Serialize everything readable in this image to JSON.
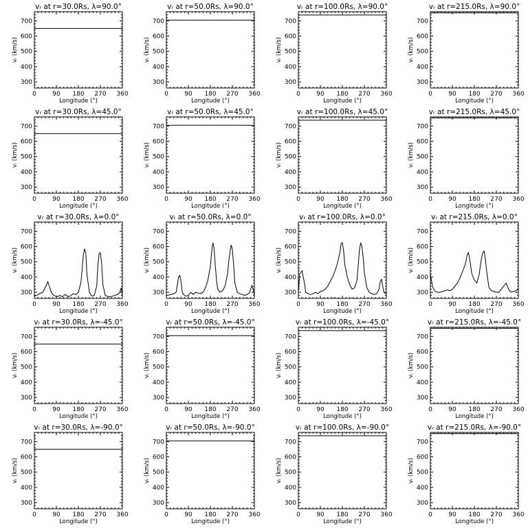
{
  "shared": {
    "xlabel": "Longitude (°)",
    "ylabel": "vᵣ (km/s)",
    "xlim": [
      0,
      360
    ],
    "ylim": [
      260,
      760
    ],
    "xticks": [
      0,
      90,
      180,
      270,
      360
    ],
    "yticks": [
      300,
      400,
      500,
      600,
      700
    ],
    "xminor": 6,
    "yminor": 5
  },
  "chart_data": [
    {
      "type": "line",
      "title": "vᵣ at r=30.0Rs, λ=90.0°",
      "r": "30.0",
      "lat": "90.0",
      "x": [
        0,
        360
      ],
      "y": [
        650,
        650
      ]
    },
    {
      "type": "line",
      "title": "vᵣ at r=50.0Rs, λ=90.0°",
      "r": "50.0",
      "lat": "90.0",
      "x": [
        0,
        360
      ],
      "y": [
        705,
        705
      ]
    },
    {
      "type": "line",
      "title": "vᵣ at r=100.0Rs, λ=90.0°",
      "r": "100.0",
      "lat": "90.0",
      "x": [
        0,
        360
      ],
      "y": [
        738,
        738
      ]
    },
    {
      "type": "line",
      "title": "vᵣ at r=215.0Rs, λ=90.0°",
      "r": "215.0",
      "lat": "90.0",
      "x": [
        0,
        360
      ],
      "y": [
        752,
        752
      ]
    },
    {
      "type": "line",
      "title": "vᵣ at r=30.0Rs, λ=45.0°",
      "r": "30.0",
      "lat": "45.0",
      "x": [
        0,
        360
      ],
      "y": [
        650,
        650
      ]
    },
    {
      "type": "line",
      "title": "vᵣ at r=50.0Rs, λ=45.0°",
      "r": "50.0",
      "lat": "45.0",
      "x": [
        0,
        360
      ],
      "y": [
        705,
        705
      ]
    },
    {
      "type": "line",
      "title": "vᵣ at r=100.0Rs, λ=45.0°",
      "r": "100.0",
      "lat": "45.0",
      "x": [
        0,
        360
      ],
      "y": [
        738,
        738
      ]
    },
    {
      "type": "line",
      "title": "vᵣ at r=215.0Rs, λ=45.0°",
      "r": "215.0",
      "lat": "45.0",
      "x": [
        0,
        360
      ],
      "y": [
        753,
        753
      ]
    },
    {
      "type": "line",
      "title": "vᵣ at r=30.0Rs, λ=0.0°",
      "r": "30.0",
      "lat": "0.0",
      "x": [
        0,
        10,
        20,
        35,
        50,
        55,
        60,
        68,
        75,
        85,
        95,
        105,
        115,
        125,
        140,
        150,
        160,
        170,
        180,
        190,
        195,
        200,
        205,
        210,
        215,
        225,
        235,
        245,
        255,
        260,
        265,
        270,
        275,
        280,
        290,
        300,
        310,
        320,
        330,
        340,
        350,
        355,
        360
      ],
      "y": [
        275,
        280,
        290,
        300,
        350,
        370,
        345,
        305,
        285,
        275,
        272,
        280,
        270,
        285,
        270,
        280,
        290,
        285,
        300,
        360,
        440,
        540,
        585,
        560,
        420,
        300,
        275,
        280,
        340,
        480,
        555,
        560,
        490,
        350,
        280,
        272,
        270,
        275,
        280,
        285,
        300,
        330,
        280
      ]
    },
    {
      "type": "line",
      "title": "vᵣ at r=50.0Rs, λ=0.0°",
      "r": "50.0",
      "lat": "0.0",
      "x": [
        0,
        10,
        20,
        30,
        40,
        50,
        55,
        60,
        65,
        70,
        80,
        90,
        100,
        110,
        120,
        130,
        140,
        150,
        160,
        170,
        180,
        185,
        190,
        195,
        200,
        205,
        210,
        220,
        230,
        240,
        250,
        255,
        260,
        265,
        270,
        275,
        280,
        290,
        300,
        310,
        320,
        330,
        340,
        350,
        355,
        360
      ],
      "y": [
        280,
        282,
        285,
        290,
        300,
        400,
        410,
        370,
        300,
        285,
        275,
        280,
        300,
        285,
        300,
        295,
        290,
        300,
        330,
        380,
        470,
        560,
        625,
        590,
        480,
        380,
        320,
        300,
        310,
        340,
        420,
        500,
        560,
        610,
        580,
        480,
        360,
        300,
        290,
        285,
        280,
        285,
        295,
        345,
        320,
        280
      ]
    },
    {
      "type": "line",
      "title": "vᵣ at r=100.0Rs, λ=0.0°",
      "r": "100.0",
      "lat": "0.0",
      "x": [
        0,
        5,
        15,
        25,
        30,
        40,
        50,
        60,
        70,
        80,
        90,
        100,
        110,
        120,
        130,
        140,
        150,
        160,
        170,
        175,
        180,
        185,
        190,
        200,
        210,
        220,
        230,
        240,
        245,
        250,
        255,
        260,
        265,
        270,
        280,
        290,
        300,
        310,
        320,
        330,
        335,
        340,
        345,
        350,
        360
      ],
      "y": [
        300,
        420,
        440,
        360,
        300,
        290,
        285,
        290,
        300,
        290,
        305,
        310,
        320,
        340,
        370,
        400,
        440,
        490,
        560,
        620,
        625,
        570,
        480,
        400,
        350,
        320,
        330,
        380,
        480,
        580,
        625,
        600,
        530,
        430,
        330,
        300,
        290,
        285,
        290,
        320,
        370,
        385,
        340,
        300,
        290
      ]
    },
    {
      "type": "line",
      "title": "vᵣ at r=215.0Rs, λ=0.0°",
      "r": "215.0",
      "lat": "0.0",
      "x": [
        0,
        2,
        10,
        20,
        30,
        40,
        50,
        60,
        70,
        80,
        90,
        100,
        110,
        120,
        130,
        140,
        145,
        150,
        155,
        160,
        165,
        170,
        180,
        190,
        200,
        205,
        210,
        215,
        220,
        225,
        230,
        235,
        240,
        250,
        260,
        270,
        280,
        290,
        300,
        310,
        320,
        330,
        340,
        350,
        360
      ],
      "y": [
        420,
        400,
        330,
        305,
        300,
        300,
        305,
        310,
        315,
        310,
        320,
        340,
        360,
        390,
        430,
        470,
        500,
        540,
        560,
        530,
        470,
        420,
        380,
        360,
        420,
        480,
        530,
        560,
        570,
        520,
        440,
        380,
        330,
        310,
        305,
        300,
        300,
        320,
        340,
        360,
        320,
        300,
        305,
        310,
        320
      ]
    },
    {
      "type": "line",
      "title": "vᵣ at r=30.0Rs, λ=-45.0°",
      "r": "30.0",
      "lat": "-45.0",
      "x": [
        0,
        360
      ],
      "y": [
        650,
        650
      ]
    },
    {
      "type": "line",
      "title": "vᵣ at r=50.0Rs, λ=-45.0°",
      "r": "50.0",
      "lat": "-45.0",
      "x": [
        0,
        360
      ],
      "y": [
        705,
        705
      ]
    },
    {
      "type": "line",
      "title": "vᵣ at r=100.0Rs, λ=-45.0°",
      "r": "100.0",
      "lat": "-45.0",
      "x": [
        0,
        360
      ],
      "y": [
        738,
        738
      ]
    },
    {
      "type": "line",
      "title": "vᵣ at r=215.0Rs, λ=-45.0°",
      "r": "215.0",
      "lat": "-45.0",
      "x": [
        0,
        360
      ],
      "y": [
        753,
        753
      ]
    },
    {
      "type": "line",
      "title": "vᵣ at r=30.0Rs, λ=-90.0°",
      "r": "30.0",
      "lat": "-90.0",
      "x": [
        0,
        360
      ],
      "y": [
        650,
        650
      ]
    },
    {
      "type": "line",
      "title": "vᵣ at r=50.0Rs, λ=-90.0°",
      "r": "50.0",
      "lat": "-90.0",
      "x": [
        0,
        360
      ],
      "y": [
        705,
        705
      ]
    },
    {
      "type": "line",
      "title": "vᵣ at r=100.0Rs, λ=-90.0°",
      "r": "100.0",
      "lat": "-90.0",
      "x": [
        0,
        360
      ],
      "y": [
        738,
        738
      ]
    },
    {
      "type": "line",
      "title": "vᵣ at r=215.0Rs, λ=-90.0°",
      "r": "215.0",
      "lat": "-90.0",
      "x": [
        0,
        360
      ],
      "y": [
        752,
        752
      ]
    }
  ]
}
